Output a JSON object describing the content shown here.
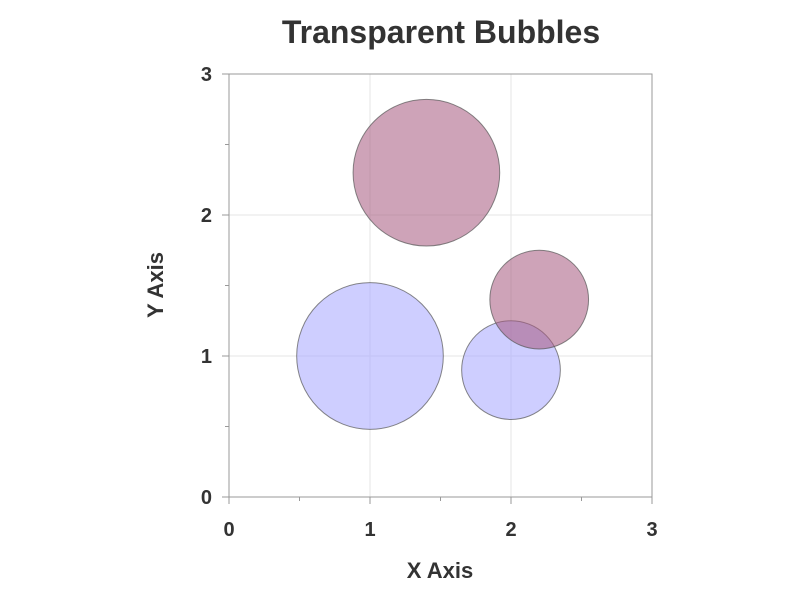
{
  "chart_data": {
    "type": "scatter",
    "title": "Transparent Bubbles",
    "xlabel": "X Axis",
    "ylabel": "Y Axis",
    "xlim": [
      0,
      3
    ],
    "ylim": [
      0,
      3
    ],
    "x_ticks": [
      "0",
      "1",
      "2",
      "3"
    ],
    "y_ticks": [
      "0",
      "1",
      "2",
      "3"
    ],
    "grid": true,
    "legend": "none",
    "bubbles": [
      {
        "x": 1.0,
        "y": 1.0,
        "radius": 0.52,
        "color": "#a6a6ff"
      },
      {
        "x": 1.4,
        "y": 2.3,
        "radius": 0.52,
        "color": "#a5577e"
      },
      {
        "x": 2.0,
        "y": 0.9,
        "radius": 0.35,
        "color": "#a6a6ff"
      },
      {
        "x": 2.2,
        "y": 1.4,
        "radius": 0.35,
        "color": "#a5577e"
      }
    ],
    "opacity": 0.55,
    "colors": {
      "axis": "#999999",
      "grid": "#e6e6e6",
      "text": "#333333",
      "bubble_outline": "#555555"
    }
  }
}
